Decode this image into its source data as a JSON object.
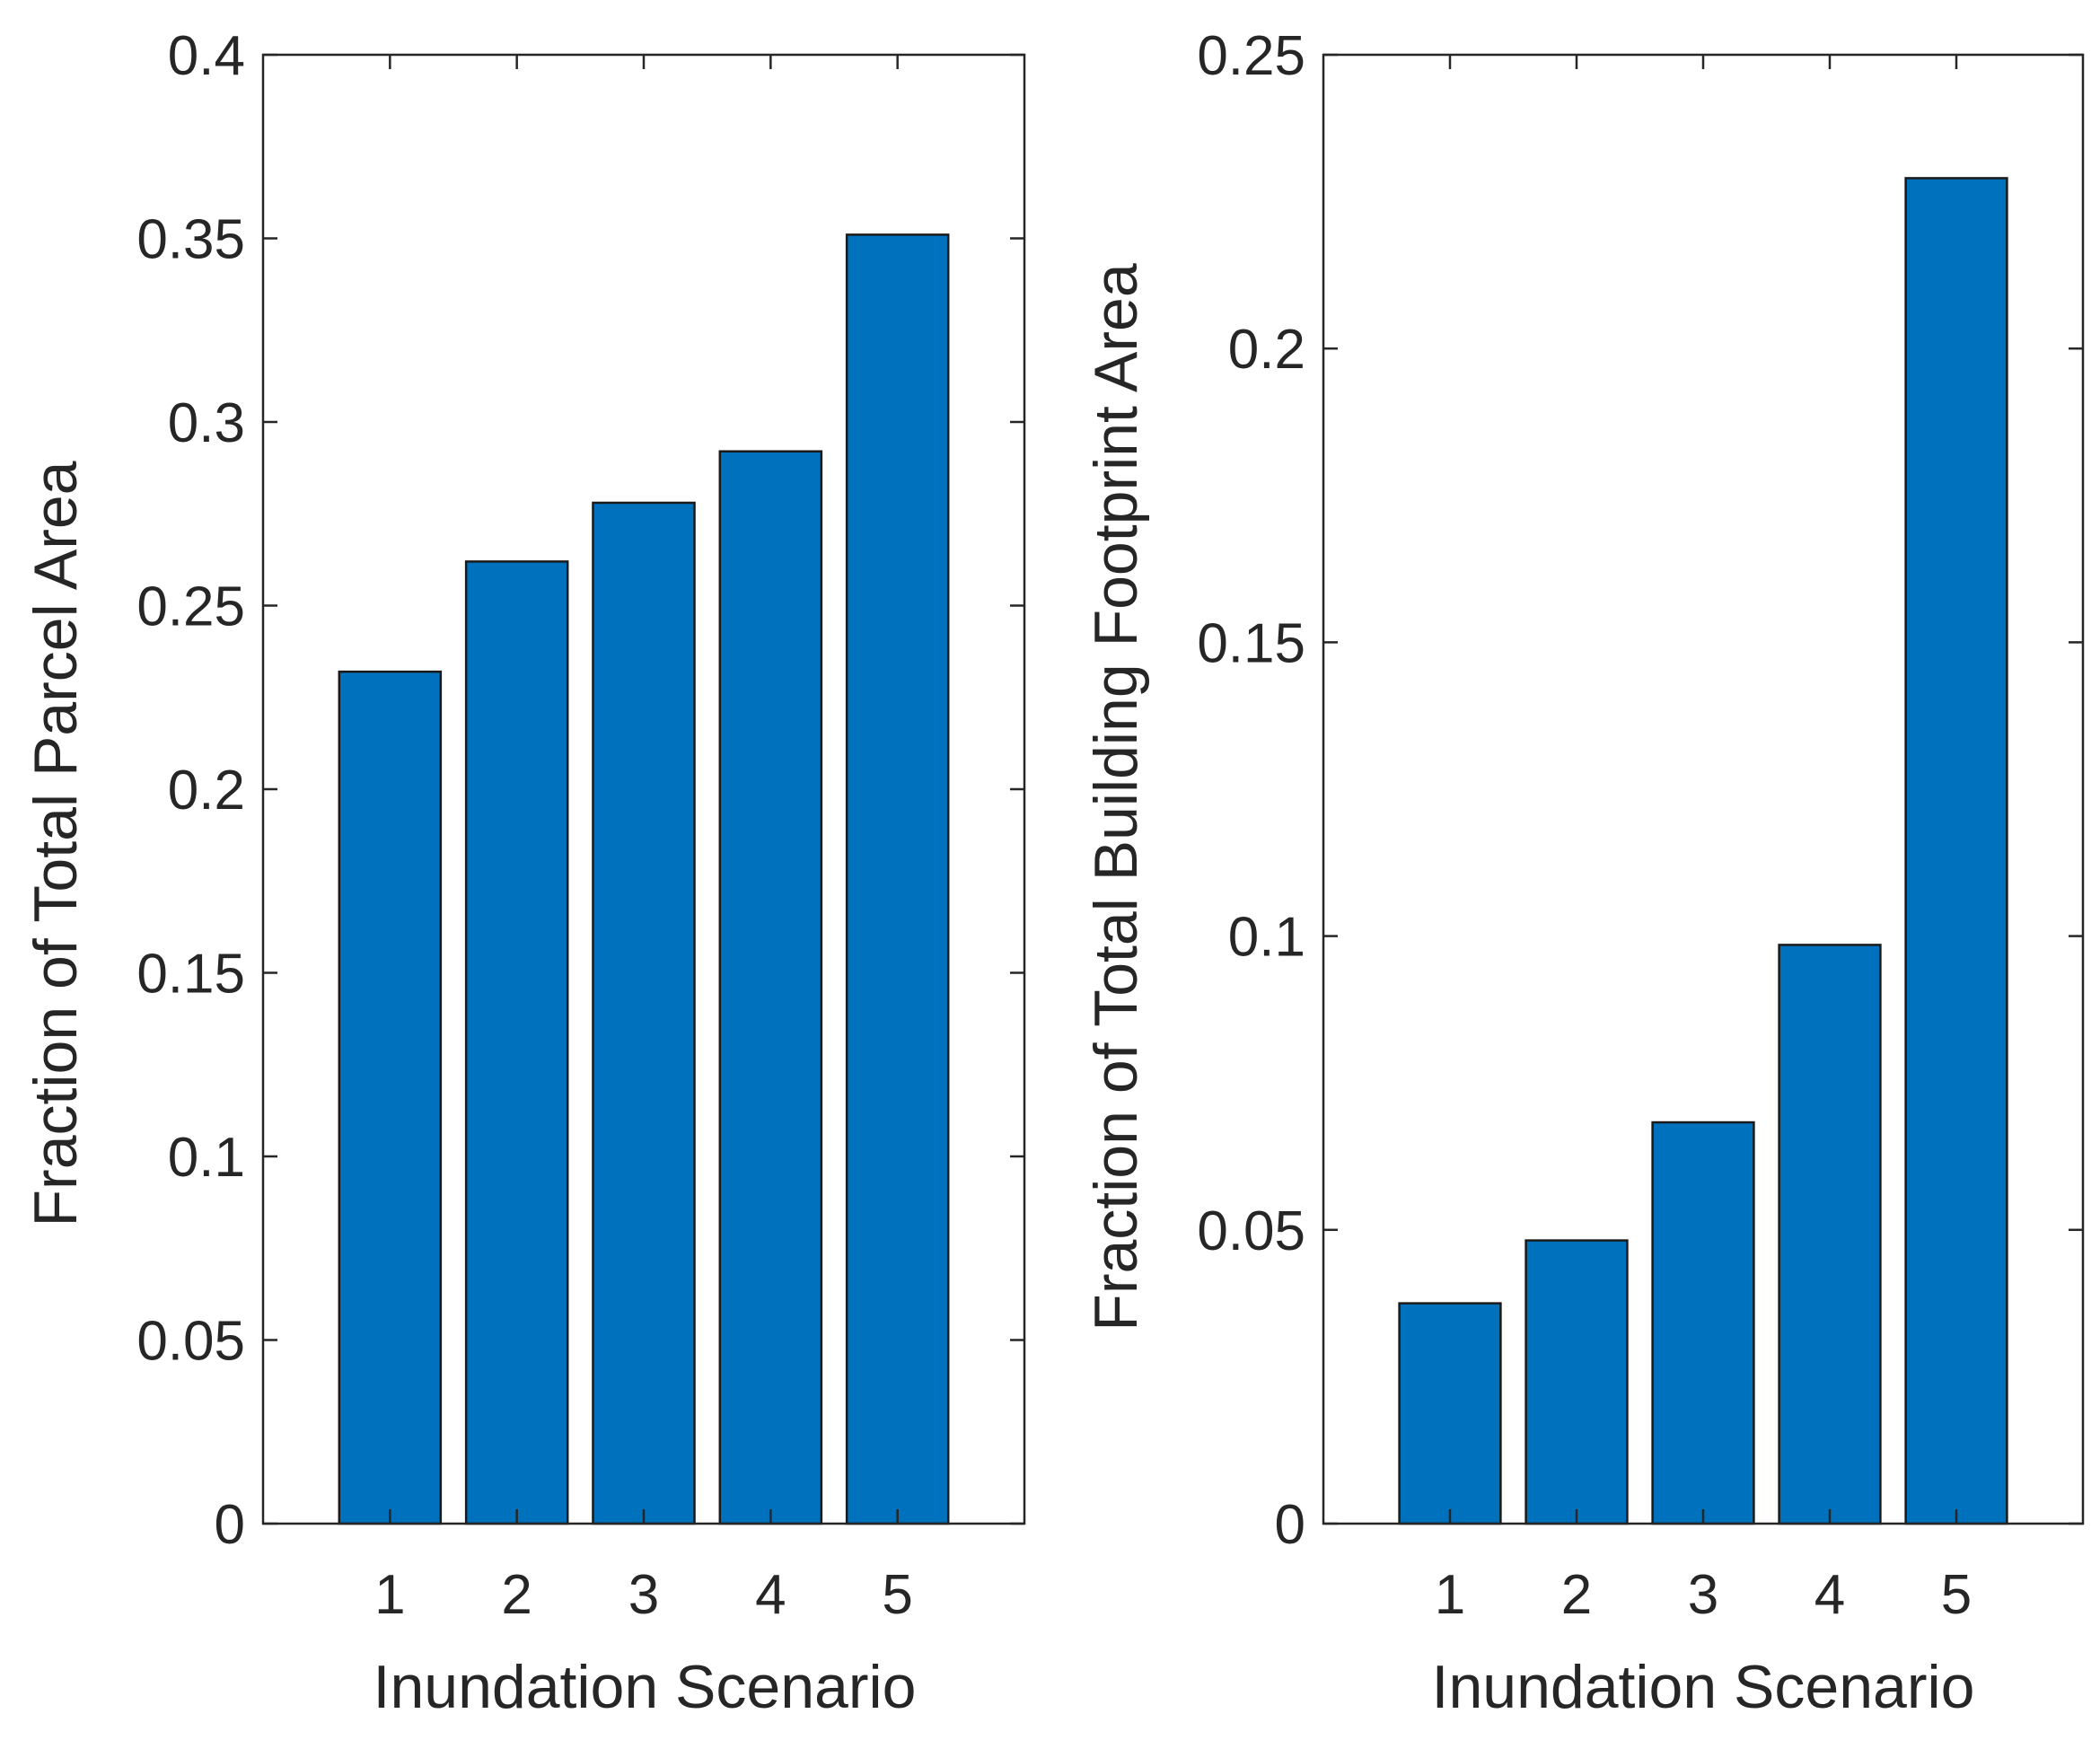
{
  "chart_data": [
    {
      "type": "bar",
      "categories": [
        "1",
        "2",
        "3",
        "4",
        "5"
      ],
      "values": [
        0.232,
        0.262,
        0.278,
        0.292,
        0.351
      ],
      "title": "",
      "xlabel": "Inundation Scenario",
      "ylabel": "Fraction of Total Parcel Area",
      "ylim": [
        0,
        0.4
      ],
      "yticks": [
        0,
        0.05,
        0.1,
        0.15,
        0.2,
        0.25,
        0.3,
        0.35,
        0.4
      ],
      "ytick_labels": [
        "0",
        "0.05",
        "0.1",
        "0.15",
        "0.2",
        "0.25",
        "0.3",
        "0.35",
        "0.4"
      ],
      "bar_color": "#0072BD",
      "grid": false
    },
    {
      "type": "bar",
      "categories": [
        "1",
        "2",
        "3",
        "4",
        "5"
      ],
      "values": [
        0.0375,
        0.0482,
        0.0683,
        0.0985,
        0.229
      ],
      "title": "",
      "xlabel": "Inundation Scenario",
      "ylabel": "Fraction of Total Building Footprint Area",
      "ylim": [
        0,
        0.25
      ],
      "yticks": [
        0,
        0.05,
        0.1,
        0.15,
        0.2,
        0.25
      ],
      "ytick_labels": [
        "0",
        "0.05",
        "0.1",
        "0.15",
        "0.2",
        "0.25"
      ],
      "bar_color": "#0072BD",
      "grid": false
    }
  ]
}
